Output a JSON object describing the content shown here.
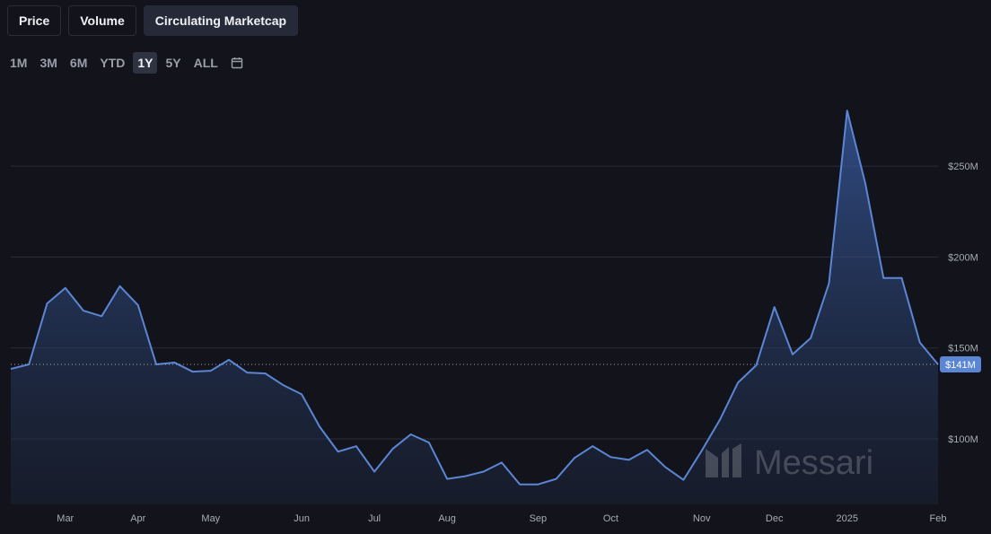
{
  "tabs": [
    "Price",
    "Volume",
    "Circulating Marketcap"
  ],
  "ranges": [
    "1M",
    "3M",
    "6M",
    "YTD",
    "1Y",
    "5Y",
    "ALL"
  ],
  "watermark": "Messari",
  "chart_data": {
    "type": "line",
    "categories": [
      null,
      null,
      null,
      "Mar",
      null,
      null,
      null,
      "Apr",
      null,
      null,
      null,
      "May",
      null,
      null,
      null,
      null,
      "Jun",
      null,
      null,
      null,
      "Jul",
      null,
      null,
      null,
      "Aug",
      null,
      null,
      null,
      null,
      "Sep",
      null,
      null,
      null,
      "Oct",
      null,
      null,
      null,
      null,
      "Nov",
      null,
      null,
      null,
      "Dec",
      null,
      null,
      null,
      "2025",
      null,
      null,
      null,
      null,
      "Feb"
    ],
    "series": [
      {
        "name": "Circulating Marketcap",
        "color": "#5b86d4",
        "values": [
          138.5,
          141,
          174.5,
          183,
          170.5,
          167.5,
          184,
          173.5,
          141,
          142,
          137,
          137.5,
          143.5,
          136.5,
          136,
          129.5,
          124.5,
          106.5,
          93,
          96,
          82,
          94.5,
          102.5,
          98,
          78,
          79.5,
          82,
          87,
          75,
          75,
          78,
          89.5,
          96,
          90,
          88.5,
          94,
          84.5,
          77.5,
          93.5,
          110.5,
          131,
          140.5,
          172.5,
          146.5,
          155.5,
          185.5,
          280.5,
          240.5,
          188.5,
          188.5,
          153,
          141
        ],
        "value_labels": [
          null,
          null,
          null,
          null,
          null,
          null,
          null,
          null,
          null,
          null,
          null,
          null,
          null,
          null,
          null,
          null,
          null,
          null,
          null,
          null,
          null,
          null,
          null,
          null,
          null,
          null,
          null,
          null,
          null,
          null,
          null,
          null,
          null,
          null,
          null,
          null,
          null,
          null,
          null,
          null,
          null,
          null,
          null,
          null,
          null,
          null,
          null,
          null,
          null,
          null,
          null,
          "$141M"
        ]
      }
    ],
    "ylim": [
      64,
      292
    ],
    "yticks": [
      {
        "value": 100,
        "label": "$100M"
      },
      {
        "value": 150,
        "label": "$150M"
      },
      {
        "value": 200,
        "label": "$200M"
      },
      {
        "value": 250,
        "label": "$250M"
      }
    ],
    "grid": true
  }
}
